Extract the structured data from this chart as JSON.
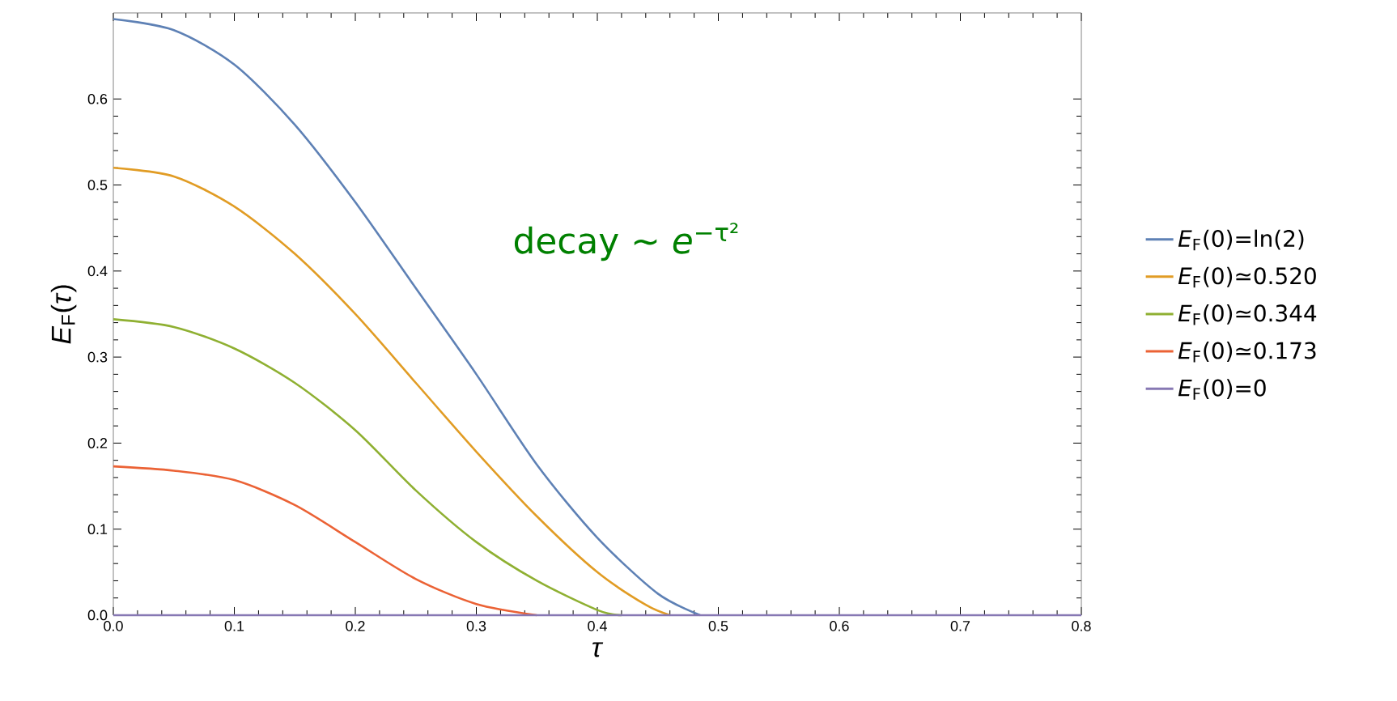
{
  "chart_data": {
    "type": "line",
    "xlabel": "*τ*",
    "ylabel": "*E*$_{F}$(*τ*)",
    "xlim": [
      0,
      0.8
    ],
    "ylim": [
      0,
      0.7
    ],
    "xticks": [
      {
        "value": 0,
        "label": "0.0"
      },
      0.1,
      0.2,
      0.3,
      0.4,
      0.5,
      0.6,
      0.7,
      0.8
    ],
    "yticks": [
      {
        "value": 0,
        "label": "0.0"
      },
      0.1,
      0.2,
      0.3,
      0.4,
      0.5,
      0.6
    ],
    "grid": false,
    "legend": "right",
    "line_style": "solid",
    "marker": "none",
    "annotations": [
      "decay ∼ *e*$^{−τ²}$"
    ],
    "series": [
      {
        "name": "*E*$_{F}$(0)=ln(2)",
        "color": "#5e81b5",
        "x": [
          0,
          0.05,
          0.1,
          0.15,
          0.2,
          0.25,
          0.3,
          0.35,
          0.4,
          0.45,
          0.485
        ],
        "values": [
          0.693,
          0.68,
          0.64,
          0.57,
          0.48,
          0.38,
          0.28,
          0.175,
          0.09,
          0.025,
          0
        ]
      },
      {
        "name": "*E*$_{F}$(0)≃0.520",
        "color": "#e19c24",
        "x": [
          0,
          0.05,
          0.1,
          0.15,
          0.2,
          0.25,
          0.3,
          0.35,
          0.4,
          0.44,
          0.46
        ],
        "values": [
          0.52,
          0.51,
          0.475,
          0.42,
          0.35,
          0.27,
          0.19,
          0.115,
          0.05,
          0.012,
          0
        ]
      },
      {
        "name": "*E*$_{F}$(0)≃0.344",
        "color": "#8fb032",
        "x": [
          0,
          0.05,
          0.1,
          0.15,
          0.2,
          0.25,
          0.3,
          0.35,
          0.4,
          0.42
        ],
        "values": [
          0.344,
          0.335,
          0.31,
          0.27,
          0.215,
          0.145,
          0.085,
          0.04,
          0.006,
          0
        ]
      },
      {
        "name": "*E*$_{F}$(0)≃0.173",
        "color": "#eb6235",
        "x": [
          0,
          0.05,
          0.1,
          0.15,
          0.2,
          0.25,
          0.3,
          0.35
        ],
        "values": [
          0.173,
          0.168,
          0.157,
          0.128,
          0.085,
          0.042,
          0.013,
          0
        ]
      },
      {
        "name": "*E*$_{F}$(0)=0",
        "color": "#8778b3",
        "x": [
          0,
          0.8
        ],
        "values": [
          0,
          0
        ]
      }
    ]
  }
}
